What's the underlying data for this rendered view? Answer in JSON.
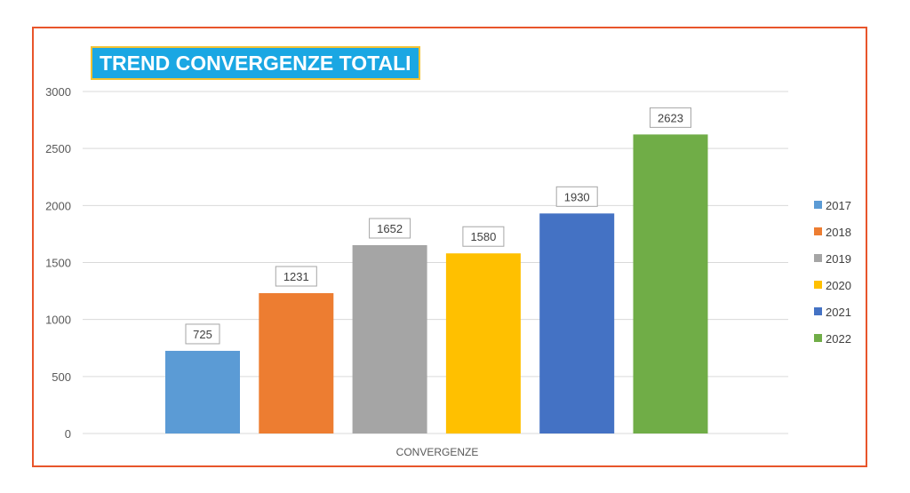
{
  "chart_data": {
    "type": "bar",
    "title": "TREND CONVERGENZE TOTALI",
    "xlabel": "CONVERGENZE",
    "ylabel": "",
    "categories": [
      "CONVERGENZE"
    ],
    "series": [
      {
        "name": "2017",
        "values": [
          725
        ],
        "color": "#5b9bd5"
      },
      {
        "name": "2018",
        "values": [
          1231
        ],
        "color": "#ed7d31"
      },
      {
        "name": "2019",
        "values": [
          1652
        ],
        "color": "#a5a5a5"
      },
      {
        "name": "2020",
        "values": [
          1580
        ],
        "color": "#ffc000"
      },
      {
        "name": "2021",
        "values": [
          1930
        ],
        "color": "#4472c4"
      },
      {
        "name": "2022",
        "values": [
          2623
        ],
        "color": "#70ad47"
      }
    ],
    "ylim": [
      0,
      3000
    ],
    "yticks": [
      "0",
      "500",
      "1000",
      "1500",
      "2000",
      "2500",
      "3000"
    ],
    "grid": true,
    "legend_position": "right"
  },
  "colors": {
    "frame_border": "#e8552b",
    "title_background": "#1aa7e3",
    "title_border": "#f2c232"
  }
}
